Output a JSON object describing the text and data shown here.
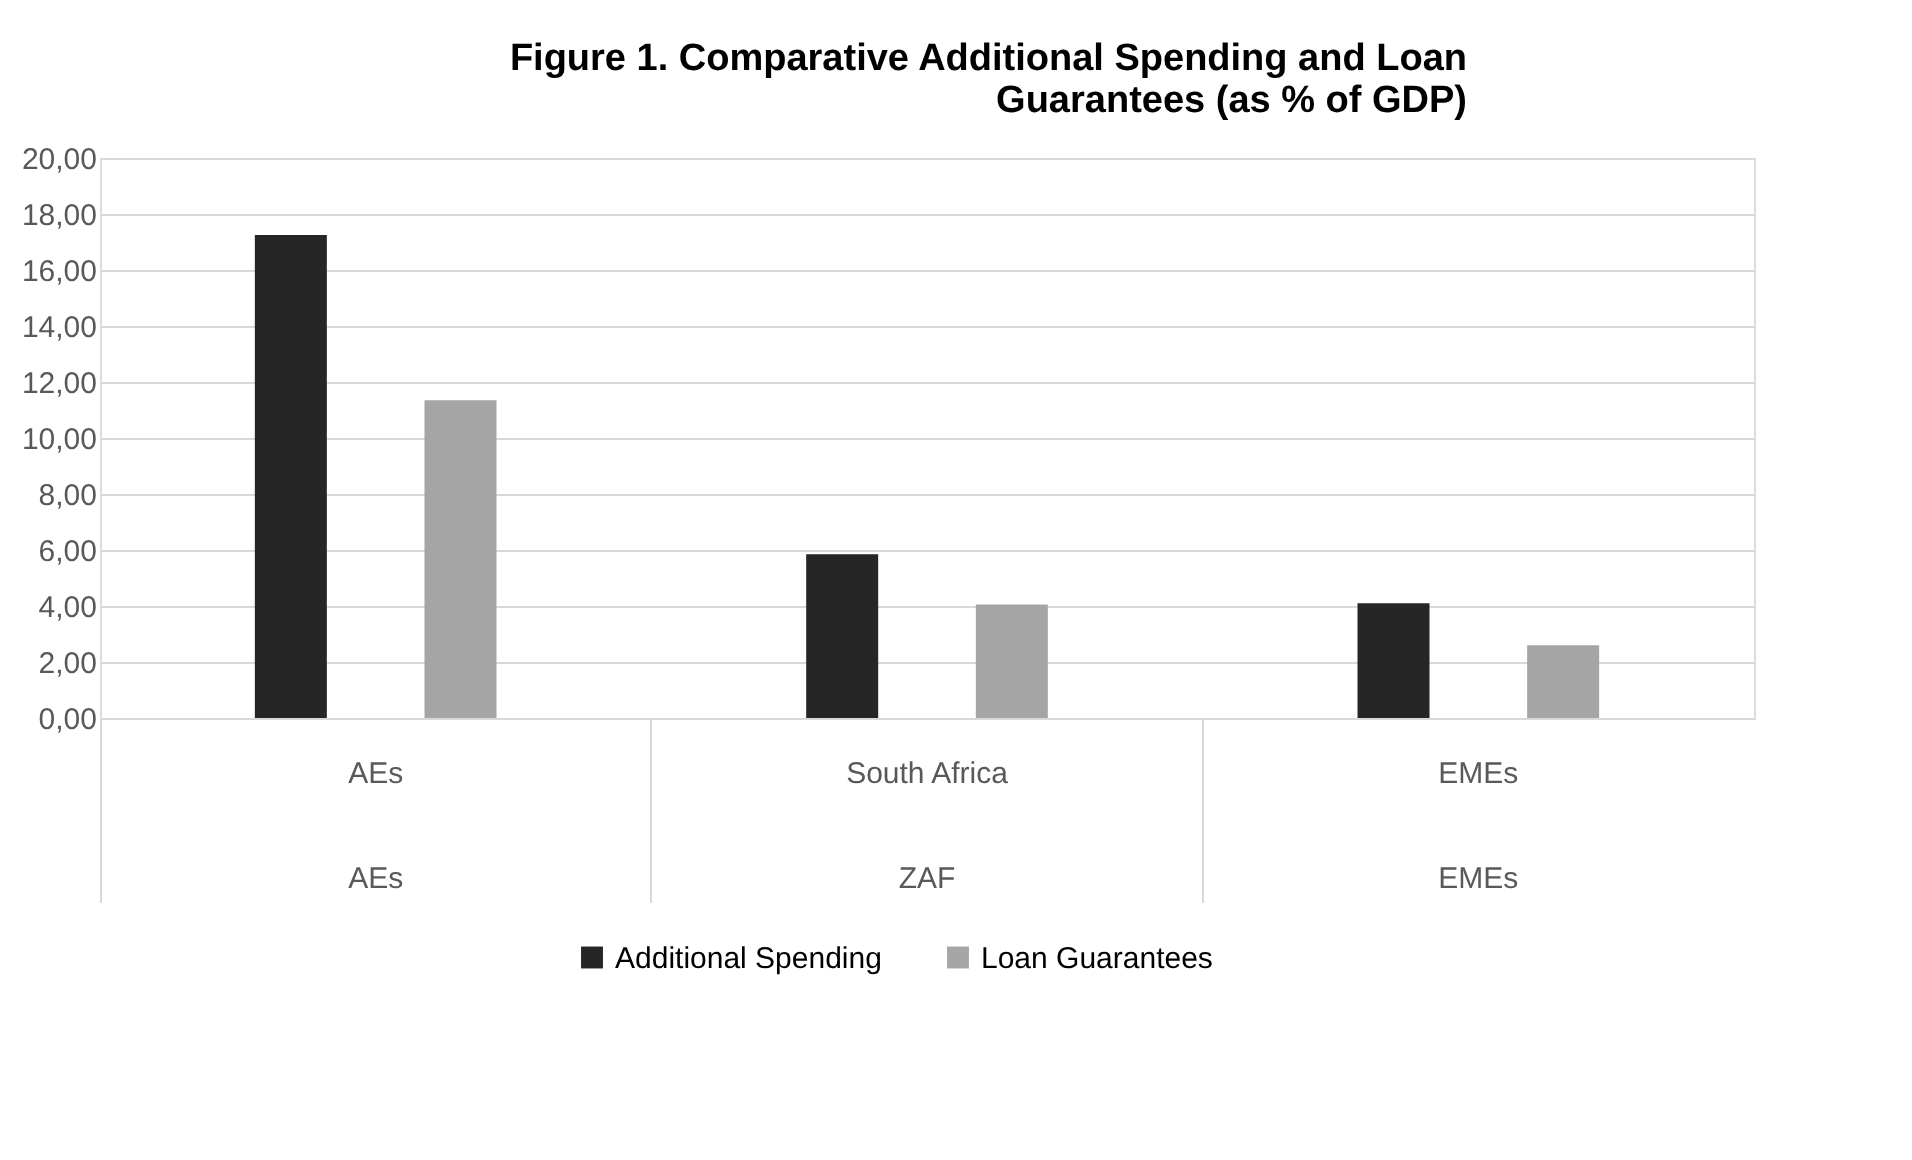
{
  "chart_data": {
    "type": "bar",
    "title": "Figure 1. Comparative Additional Spending and Loan Guarantees (as % of GDP)",
    "categories": [
      "AEs",
      "South Africa",
      "EMEs"
    ],
    "series": [
      {
        "name": "Additional Spending",
        "color": "#262626",
        "values": [
          17.25,
          5.85,
          4.1
        ]
      },
      {
        "name": "Loan Guarantees",
        "color": "#a5a5a5",
        "values": [
          11.35,
          4.05,
          2.6
        ]
      }
    ],
    "annotations": [
      "AEs",
      "ZAF",
      "EMEs"
    ],
    "ylim": [
      0,
      20
    ],
    "yticks": [
      {
        "value": 0,
        "label": "0,00"
      },
      {
        "value": 2,
        "label": "2,00"
      },
      {
        "value": 4,
        "label": "4,00"
      },
      {
        "value": 6,
        "label": "6,00"
      },
      {
        "value": 8,
        "label": "8,00"
      },
      {
        "value": 10,
        "label": "10,00"
      },
      {
        "value": 12,
        "label": "12,00"
      },
      {
        "value": 14,
        "label": "14,00"
      },
      {
        "value": 16,
        "label": "16,00"
      },
      {
        "value": 18,
        "label": "18,00"
      },
      {
        "value": 20,
        "label": "20,00"
      }
    ],
    "grid": "y",
    "legend": "bottom"
  }
}
